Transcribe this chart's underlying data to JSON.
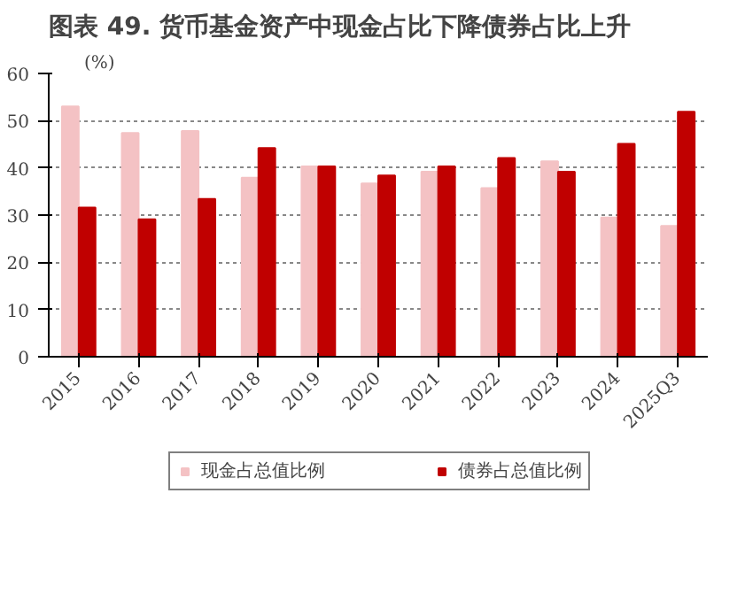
{
  "chart_data": {
    "type": "bar",
    "title": "图表 49. 货币基金资产中现金占比下降债券占比上升",
    "ylabel": "(%)",
    "categories": [
      "2015",
      "2016",
      "2017",
      "2018",
      "2019",
      "2020",
      "2021",
      "2022",
      "2023",
      "2024",
      "2025Q3"
    ],
    "series": [
      {
        "name": "现金占总值比例",
        "color": "#f4c2c4",
        "values": [
          53.0,
          47.4,
          47.8,
          37.9,
          40.3,
          36.7,
          39.2,
          35.7,
          41.4,
          29.5,
          27.7
        ]
      },
      {
        "name": "债券占总值比例",
        "color": "#c00000",
        "values": [
          31.6,
          29.1,
          33.4,
          44.2,
          40.3,
          38.4,
          40.3,
          42.1,
          39.2,
          45.1,
          51.9
        ]
      }
    ],
    "ylim": [
      0,
      60
    ],
    "yticks": [
      0,
      10,
      20,
      30,
      40,
      50,
      60
    ],
    "grid": "y",
    "legend": "bottom"
  }
}
